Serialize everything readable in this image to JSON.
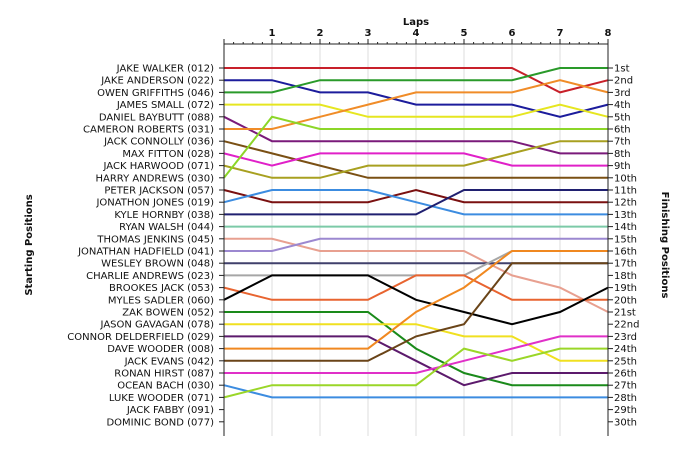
{
  "chart_data": {
    "type": "line",
    "title": "",
    "x_axis_label": "Laps",
    "left_axis_label": "Starting Positions",
    "right_axis_label": "Finishing Positions",
    "laps": [
      0,
      1,
      2,
      3,
      4,
      5,
      6,
      7,
      8
    ],
    "lap_tick_labels": [
      "1",
      "2",
      "3",
      "4",
      "5",
      "6",
      "7",
      "8"
    ],
    "finishing_position_labels": [
      "1st",
      "2nd",
      "3rd",
      "4th",
      "5th",
      "6th",
      "7th",
      "8th",
      "9th",
      "10th",
      "11th",
      "12th",
      "13th",
      "14th",
      "15th",
      "16th",
      "17th",
      "18th",
      "19th",
      "20th",
      "21st",
      "22nd",
      "23rd",
      "24th",
      "25th",
      "26th",
      "27th",
      "28th",
      "29th",
      "30th"
    ],
    "series": [
      {
        "name": "JAKE WALKER (012)",
        "color": "#c8202a",
        "positions": [
          1,
          1,
          1,
          1,
          1,
          1,
          1,
          3,
          2
        ]
      },
      {
        "name": "JAKE ANDERSON (022)",
        "color": "#1c1c9c",
        "positions": [
          2,
          2,
          3,
          3,
          4,
          4,
          4,
          5,
          4
        ]
      },
      {
        "name": "OWEN GRIFFITHS (046)",
        "color": "#2a9a2a",
        "positions": [
          3,
          3,
          2,
          2,
          2,
          2,
          2,
          1,
          1
        ]
      },
      {
        "name": "JAMES SMALL (072)",
        "color": "#e6e620",
        "positions": [
          4,
          4,
          4,
          5,
          5,
          5,
          5,
          4,
          5
        ]
      },
      {
        "name": "DANIEL BAYBUTT (088)",
        "color": "#7a1a7a",
        "positions": [
          5,
          7,
          7,
          7,
          7,
          7,
          7,
          8,
          8
        ]
      },
      {
        "name": "CAMERON ROBERTS (031)",
        "color": "#f08c28",
        "positions": [
          6,
          6,
          5,
          4,
          3,
          3,
          3,
          2,
          3
        ]
      },
      {
        "name": "JACK CONNOLLY (036)",
        "color": "#7a5014",
        "positions": [
          7,
          8,
          9,
          10,
          10,
          10,
          10,
          10,
          10
        ]
      },
      {
        "name": "MAX FITTON (028)",
        "color": "#e020c8",
        "positions": [
          8,
          9,
          8,
          8,
          8,
          8,
          9,
          9,
          9
        ]
      },
      {
        "name": "JACK HARWOOD (071)",
        "color": "#a8a020",
        "positions": [
          9,
          10,
          10,
          9,
          9,
          9,
          8,
          7,
          7
        ]
      },
      {
        "name": "HARRY ANDREWS (030)",
        "color": "#8cd628",
        "positions": [
          10,
          5,
          6,
          6,
          6,
          6,
          6,
          6,
          6
        ]
      },
      {
        "name": "PETER JACKSON (057)",
        "color": "#7a1010",
        "positions": [
          11,
          12,
          12,
          12,
          11,
          12,
          12,
          12,
          12
        ]
      },
      {
        "name": "JONATHON JONES (019)",
        "color": "#3c8ce0",
        "positions": [
          12,
          11,
          11,
          11,
          12,
          13,
          13,
          13,
          13
        ]
      },
      {
        "name": "KYLE HORNBY (038)",
        "color": "#202070",
        "positions": [
          13,
          13,
          13,
          13,
          13,
          11,
          11,
          11,
          11
        ]
      },
      {
        "name": "RYAN WALSH (044)",
        "color": "#7ccaa8",
        "positions": [
          14,
          14,
          14,
          14,
          14,
          14,
          14,
          14,
          14
        ]
      },
      {
        "name": "THOMAS JENKINS (045)",
        "color": "#e8a090",
        "positions": [
          15,
          15,
          16,
          16,
          16,
          16,
          18,
          19,
          21
        ]
      },
      {
        "name": "JONATHAN HADFIELD (041)",
        "color": "#9c88d0",
        "positions": [
          16,
          16,
          15,
          15,
          15,
          15,
          15,
          15,
          15
        ]
      },
      {
        "name": "WESLEY BROWN (048)",
        "color": "#40406c",
        "positions": [
          17,
          17,
          17,
          17,
          17,
          17,
          17,
          17,
          17
        ]
      },
      {
        "name": "CHARLIE ANDREWS (023)",
        "color": "#a6a6a6",
        "positions": [
          18,
          18,
          18,
          18,
          18,
          18,
          16,
          16,
          16
        ]
      },
      {
        "name": "BROOKES JACK (053)",
        "color": "#e86430",
        "positions": [
          19,
          20,
          20,
          20,
          18,
          18,
          20,
          20,
          20
        ]
      },
      {
        "name": "MYLES SADLER (060)",
        "color": "#000000",
        "positions": [
          20,
          18,
          18,
          18,
          20,
          21,
          22,
          21,
          19
        ]
      },
      {
        "name": "ZAK BOWEN (052)",
        "color": "#1a8a1a",
        "positions": [
          21,
          21,
          21,
          21,
          24,
          26,
          27,
          27,
          27
        ]
      },
      {
        "name": "JASON GAVAGAN (078)",
        "color": "#f0e020",
        "positions": [
          22,
          22,
          22,
          22,
          22,
          23,
          23,
          25,
          25
        ]
      },
      {
        "name": "CONNOR DELDERFIELD (029)",
        "color": "#5c1a6c",
        "positions": [
          23,
          23,
          23,
          23,
          25,
          27,
          26,
          26,
          26
        ]
      },
      {
        "name": "DAVE WOODER (008)",
        "color": "#f08820",
        "positions": [
          24,
          24,
          24,
          24,
          21,
          19,
          16,
          16,
          16
        ]
      },
      {
        "name": "JACK EVANS (042)",
        "color": "#6a4418",
        "positions": [
          25,
          25,
          25,
          25,
          23,
          22,
          17,
          17,
          17
        ]
      },
      {
        "name": "RONAN HIRST (087)",
        "color": "#e030c8",
        "positions": [
          26,
          26,
          26,
          26,
          26,
          25,
          24,
          23,
          23
        ]
      },
      {
        "name": "OCEAN BACH (030)",
        "color": "#3c8ce0",
        "positions": [
          27,
          28,
          28,
          28,
          28,
          28,
          28,
          28,
          28
        ]
      },
      {
        "name": "LUKE WOODER (071)",
        "color": "#9ad628",
        "positions": [
          28,
          27,
          27,
          27,
          27,
          24,
          25,
          24,
          24
        ]
      },
      {
        "name": "JACK FABBY (091)",
        "color": "#ffffff",
        "positions": [
          29
        ]
      },
      {
        "name": "DOMINIC BOND (077)",
        "color": "#ffffff",
        "positions": [
          30
        ]
      }
    ]
  }
}
